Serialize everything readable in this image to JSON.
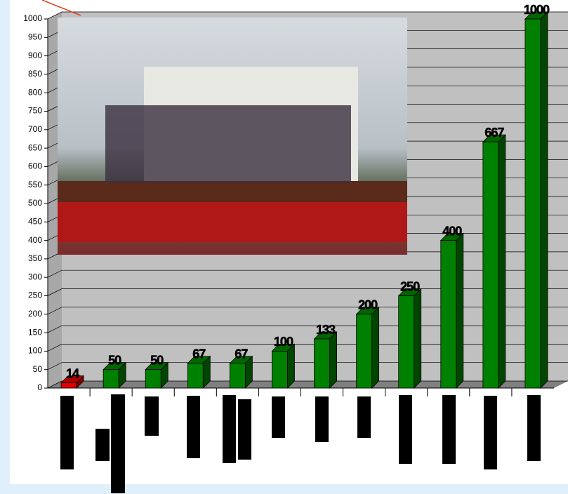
{
  "chart_data": {
    "type": "bar3d",
    "categories": [
      null,
      null,
      null,
      null,
      null,
      null,
      null,
      null,
      null,
      null,
      null,
      null
    ],
    "values": [
      14,
      50,
      50,
      67,
      67,
      100,
      133,
      200,
      250,
      400,
      667,
      1000
    ],
    "colors": [
      "#e00000",
      "#008000",
      "#008000",
      "#008000",
      "#008000",
      "#008000",
      "#008000",
      "#008000",
      "#008000",
      "#008000",
      "#008000",
      "#008000"
    ],
    "ylim": [
      0,
      1000
    ],
    "yticks": [
      0,
      50,
      100,
      150,
      200,
      250,
      300,
      350,
      400,
      450,
      500,
      550,
      600,
      650,
      700,
      750,
      800,
      850,
      900,
      950,
      1000
    ],
    "grid": true
  }
}
